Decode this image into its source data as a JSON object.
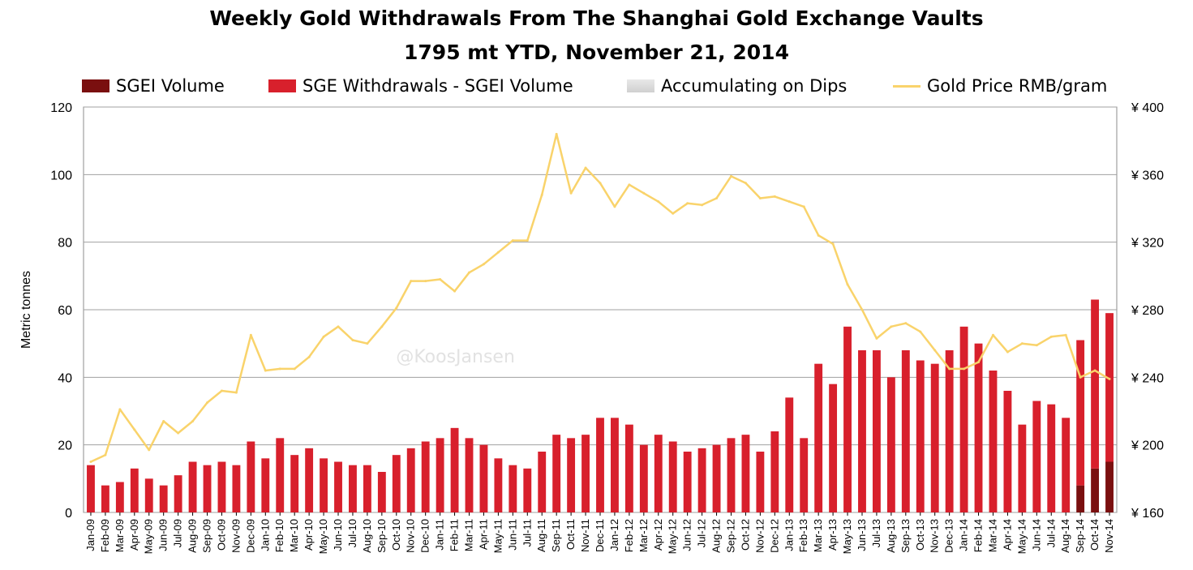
{
  "chart_data": {
    "type": "bar",
    "title": "Weekly Gold Withdrawals From The Shanghai Gold Exchange Vaults",
    "subtitle": "1795 mt YTD, November 21, 2014",
    "ylabel": "Metric tonnes",
    "ylim": [
      0,
      120
    ],
    "y_ticks": [
      "0",
      "20",
      "40",
      "60",
      "80",
      "100",
      "120"
    ],
    "y2lim": [
      160,
      400
    ],
    "y2_ticks": [
      "¥ 160",
      "¥ 200",
      "¥ 240",
      "¥ 280",
      "¥ 320",
      "¥ 360",
      "¥ 400"
    ],
    "grid": true,
    "legend_position": "top",
    "watermark": "@KoosJansen",
    "categories": [
      "Jan-09",
      "Feb-09",
      "Mar-09",
      "Apr-09",
      "May-09",
      "Jun-09",
      "Jul-09",
      "Aug-09",
      "Sep-09",
      "Oct-09",
      "Nov-09",
      "Dec-09",
      "Jan-10",
      "Feb-10",
      "Mar-10",
      "Apr-10",
      "May-10",
      "Jun-10",
      "Jul-10",
      "Aug-10",
      "Sep-10",
      "Oct-10",
      "Nov-10",
      "Dec-10",
      "Jan-11",
      "Feb-11",
      "Mar-11",
      "Apr-11",
      "May-11",
      "Jun-11",
      "Jul-11",
      "Aug-11",
      "Sep-11",
      "Oct-11",
      "Nov-11",
      "Dec-11",
      "Jan-12",
      "Feb-12",
      "Mar-12",
      "Apr-12",
      "May-12",
      "Jun-12",
      "Jul-12",
      "Aug-12",
      "Sep-12",
      "Oct-12",
      "Nov-12",
      "Dec-12",
      "Jan-13",
      "Feb-13",
      "Mar-13",
      "Apr-13",
      "May-13",
      "Jun-13",
      "Jul-13",
      "Aug-13",
      "Sep-13",
      "Oct-13",
      "Nov-13",
      "Dec-13",
      "Jan-14",
      "Feb-14",
      "Mar-14",
      "Apr-14",
      "May-14",
      "Jun-14",
      "Jul-14",
      "Aug-14",
      "Sep-14",
      "Oct-14",
      "Nov-14"
    ],
    "series": [
      {
        "name": "SGEI Volume",
        "color": "#7a0f0f",
        "unit": "Metric tonnes",
        "values": [
          0,
          0,
          0,
          0,
          0,
          0,
          0,
          0,
          0,
          0,
          0,
          0,
          0,
          0,
          0,
          0,
          0,
          0,
          0,
          0,
          0,
          0,
          0,
          0,
          0,
          0,
          0,
          0,
          0,
          0,
          0,
          0,
          0,
          0,
          0,
          0,
          0,
          0,
          0,
          0,
          0,
          0,
          0,
          0,
          0,
          0,
          0,
          0,
          0,
          0,
          0,
          0,
          0,
          0,
          0,
          0,
          0,
          0,
          0,
          0,
          0,
          0,
          0,
          0,
          0,
          0,
          0,
          0,
          8,
          13,
          15
        ]
      },
      {
        "name": "SGE Withdrawals - SGEI Volume",
        "color": "#d8202c",
        "unit": "Metric tonnes",
        "values": [
          14,
          8,
          9,
          13,
          10,
          8,
          11,
          15,
          14,
          15,
          14,
          21,
          16,
          22,
          17,
          19,
          16,
          15,
          14,
          14,
          12,
          17,
          19,
          21,
          22,
          25,
          22,
          20,
          16,
          14,
          13,
          18,
          23,
          22,
          23,
          28,
          28,
          26,
          20,
          23,
          21,
          18,
          19,
          20,
          22,
          23,
          18,
          24,
          34,
          22,
          44,
          38,
          55,
          48,
          48,
          40,
          48,
          45,
          44,
          48,
          55,
          50,
          42,
          36,
          26,
          33,
          32,
          28,
          43,
          50,
          44
        ]
      },
      {
        "name": "Gold Price RMB/gram",
        "color": "#f9d36b",
        "unit": "RMB/gram",
        "values": [
          190,
          194,
          221,
          209,
          197,
          214,
          207,
          214,
          225,
          232,
          231,
          265,
          244,
          245,
          245,
          252,
          264,
          270,
          262,
          260,
          270,
          281,
          297,
          297,
          298,
          291,
          302,
          307,
          314,
          321,
          321,
          348,
          384,
          349,
          364,
          355,
          341,
          354,
          349,
          344,
          337,
          343,
          342,
          346,
          359,
          355,
          346,
          347,
          344,
          341,
          324,
          319,
          295,
          280,
          263,
          270,
          272,
          267,
          256,
          245,
          245,
          249,
          265,
          255,
          260,
          259,
          264,
          265,
          240,
          244,
          239
        ]
      }
    ],
    "legend_labels": [
      "SGEI Volume",
      "SGE Withdrawals - SGEI Volume",
      "Accumulating on Dips",
      "Gold Price RMB/gram"
    ]
  }
}
